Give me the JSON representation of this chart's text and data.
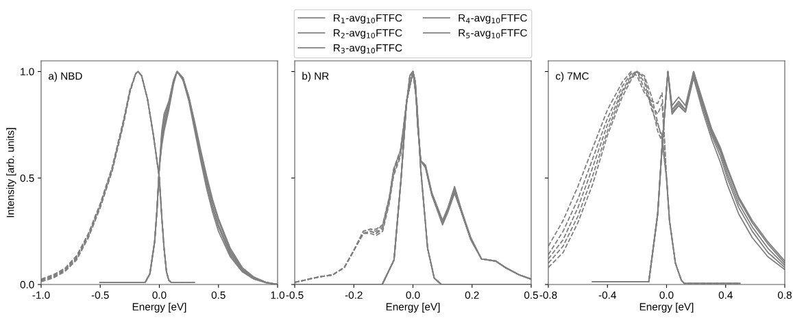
{
  "chart_data": [
    {
      "type": "line",
      "xlabel": "Energy [eV]",
      "ylabel": "Intensity [arb. units]",
      "annotations": [
        "a) NBD"
      ],
      "xlim": [
        -1.0,
        1.0
      ],
      "ylim": [
        0,
        1.05
      ],
      "xticks": [
        {
          "value": -1.0,
          "label": "-1.0"
        },
        {
          "value": -0.5,
          "label": "-0.5"
        },
        {
          "value": 0.0,
          "label": "0.0"
        },
        {
          "value": 0.5,
          "label": "0.5"
        },
        {
          "value": 1.0,
          "label": "1.0"
        }
      ],
      "yticks": [
        {
          "value": 0.0,
          "label": "0.0"
        },
        {
          "value": 0.5,
          "label": "0.5"
        },
        {
          "value": 1.0,
          "label": "1.0"
        }
      ],
      "series": [
        {
          "color": "#808080",
          "line_style": "solid",
          "x": [
            -0.5,
            -0.12,
            -0.08,
            -0.04,
            -0.02,
            0.0,
            0.02,
            0.04,
            0.08,
            0.12,
            0.15,
            0.2,
            0.25,
            0.3,
            0.35,
            0.4,
            0.45,
            0.5,
            0.6,
            0.7,
            0.8,
            0.9,
            1.0
          ],
          "values": [
            0.01,
            0.01,
            0.05,
            0.2,
            0.35,
            0.55,
            0.72,
            0.8,
            0.86,
            0.96,
            1.0,
            0.96,
            0.86,
            0.72,
            0.58,
            0.45,
            0.34,
            0.25,
            0.13,
            0.06,
            0.025,
            0.008,
            0.0
          ]
        },
        {
          "color": "#808080",
          "line_style": "solid",
          "x": [
            -0.5,
            -0.12,
            -0.08,
            -0.04,
            -0.02,
            0.0,
            0.02,
            0.04,
            0.08,
            0.12,
            0.15,
            0.2,
            0.25,
            0.3,
            0.35,
            0.4,
            0.45,
            0.5,
            0.6,
            0.7,
            0.8,
            0.9,
            1.0
          ],
          "values": [
            0.01,
            0.01,
            0.05,
            0.2,
            0.35,
            0.55,
            0.7,
            0.78,
            0.85,
            0.96,
            1.0,
            0.96,
            0.87,
            0.73,
            0.6,
            0.47,
            0.36,
            0.27,
            0.14,
            0.065,
            0.028,
            0.009,
            0.0
          ]
        },
        {
          "color": "#808080",
          "line_style": "solid",
          "x": [
            -0.5,
            -0.12,
            -0.08,
            -0.04,
            -0.02,
            0.0,
            0.02,
            0.04,
            0.08,
            0.12,
            0.15,
            0.2,
            0.25,
            0.3,
            0.35,
            0.4,
            0.45,
            0.5,
            0.6,
            0.7,
            0.8,
            0.9,
            1.0
          ],
          "values": [
            0.01,
            0.01,
            0.05,
            0.2,
            0.35,
            0.55,
            0.68,
            0.76,
            0.84,
            0.95,
            1.0,
            0.97,
            0.87,
            0.74,
            0.61,
            0.48,
            0.37,
            0.28,
            0.15,
            0.07,
            0.03,
            0.01,
            0.0
          ]
        },
        {
          "color": "#808080",
          "line_style": "solid",
          "x": [
            -0.5,
            -0.12,
            -0.08,
            -0.04,
            -0.02,
            0.0,
            0.02,
            0.04,
            0.08,
            0.12,
            0.15,
            0.2,
            0.25,
            0.3,
            0.35,
            0.4,
            0.45,
            0.5,
            0.6,
            0.7,
            0.8,
            0.9,
            1.0
          ],
          "values": [
            0.01,
            0.01,
            0.05,
            0.2,
            0.35,
            0.55,
            0.66,
            0.74,
            0.83,
            0.95,
            1.0,
            0.97,
            0.88,
            0.75,
            0.62,
            0.5,
            0.39,
            0.3,
            0.16,
            0.075,
            0.032,
            0.01,
            0.0
          ]
        },
        {
          "color": "#808080",
          "line_style": "solid",
          "x": [
            -0.5,
            -0.12,
            -0.08,
            -0.04,
            -0.02,
            0.0,
            0.02,
            0.04,
            0.08,
            0.12,
            0.15,
            0.2,
            0.25,
            0.3,
            0.35,
            0.4,
            0.45,
            0.5,
            0.6,
            0.7,
            0.8,
            0.9,
            1.0
          ],
          "values": [
            0.01,
            0.01,
            0.05,
            0.2,
            0.35,
            0.55,
            0.65,
            0.72,
            0.82,
            0.94,
            1.0,
            0.97,
            0.88,
            0.76,
            0.63,
            0.51,
            0.4,
            0.31,
            0.17,
            0.08,
            0.035,
            0.011,
            0.0
          ]
        },
        {
          "color": "#808080",
          "line_style": "dashed",
          "x": [
            -1.0,
            -0.9,
            -0.8,
            -0.7,
            -0.6,
            -0.5,
            -0.4,
            -0.3,
            -0.25,
            -0.2,
            -0.18,
            -0.15,
            -0.1,
            -0.05,
            0.0,
            0.02,
            0.04,
            0.06,
            0.08,
            0.1,
            0.3
          ],
          "values": [
            0.013,
            0.03,
            0.06,
            0.115,
            0.22,
            0.36,
            0.53,
            0.76,
            0.9,
            0.99,
            1.0,
            0.98,
            0.87,
            0.7,
            0.5,
            0.32,
            0.17,
            0.06,
            0.02,
            0.01,
            0.01
          ]
        },
        {
          "color": "#808080",
          "line_style": "dashed",
          "x": [
            -1.0,
            -0.9,
            -0.8,
            -0.7,
            -0.6,
            -0.5,
            -0.4,
            -0.3,
            -0.25,
            -0.2,
            -0.18,
            -0.15,
            -0.1,
            -0.05,
            0.0,
            0.02,
            0.04,
            0.06,
            0.08,
            0.1,
            0.3
          ],
          "values": [
            0.015,
            0.034,
            0.064,
            0.12,
            0.225,
            0.365,
            0.535,
            0.765,
            0.9,
            0.99,
            1.0,
            0.98,
            0.87,
            0.7,
            0.5,
            0.32,
            0.17,
            0.06,
            0.02,
            0.01,
            0.01
          ]
        },
        {
          "color": "#808080",
          "line_style": "dashed",
          "x": [
            -1.0,
            -0.9,
            -0.8,
            -0.7,
            -0.6,
            -0.5,
            -0.4,
            -0.3,
            -0.25,
            -0.2,
            -0.18,
            -0.15,
            -0.1,
            -0.05,
            0.0,
            0.02,
            0.04,
            0.06,
            0.08,
            0.1,
            0.3
          ],
          "values": [
            0.02,
            0.038,
            0.068,
            0.125,
            0.23,
            0.37,
            0.54,
            0.77,
            0.91,
            0.99,
            1.0,
            0.98,
            0.87,
            0.7,
            0.5,
            0.32,
            0.17,
            0.06,
            0.02,
            0.01,
            0.01
          ]
        },
        {
          "color": "#808080",
          "line_style": "dashed",
          "x": [
            -1.0,
            -0.9,
            -0.8,
            -0.7,
            -0.6,
            -0.5,
            -0.4,
            -0.3,
            -0.25,
            -0.2,
            -0.18,
            -0.15,
            -0.1,
            -0.05,
            0.0,
            0.02,
            0.04,
            0.06,
            0.08,
            0.1,
            0.3
          ],
          "values": [
            0.022,
            0.042,
            0.072,
            0.13,
            0.235,
            0.375,
            0.545,
            0.775,
            0.91,
            0.99,
            1.0,
            0.98,
            0.87,
            0.7,
            0.5,
            0.32,
            0.17,
            0.06,
            0.02,
            0.01,
            0.01
          ]
        },
        {
          "color": "#808080",
          "line_style": "dashed",
          "x": [
            -1.0,
            -0.9,
            -0.8,
            -0.7,
            -0.6,
            -0.5,
            -0.4,
            -0.3,
            -0.25,
            -0.2,
            -0.18,
            -0.15,
            -0.1,
            -0.05,
            0.0,
            0.02,
            0.04,
            0.06,
            0.08,
            0.1,
            0.3
          ],
          "values": [
            0.025,
            0.045,
            0.075,
            0.135,
            0.24,
            0.38,
            0.55,
            0.78,
            0.91,
            0.99,
            1.0,
            0.98,
            0.87,
            0.7,
            0.5,
            0.32,
            0.17,
            0.06,
            0.02,
            0.01,
            0.01
          ]
        }
      ]
    },
    {
      "type": "line",
      "xlabel": "Energy [eV]",
      "annotations": [
        "b) NR"
      ],
      "xlim": [
        -0.5,
        0.5
      ],
      "ylim": [
        0,
        1.05
      ],
      "tick_labels": "x",
      "legend": "top",
      "xticks": [
        {
          "value": -0.5,
          "label": "-0.5"
        },
        {
          "value": -0.25,
          "label": "-0.2"
        },
        {
          "value": 0.0,
          "label": "0.0"
        },
        {
          "value": 0.25,
          "label": "0.2"
        },
        {
          "value": 0.5,
          "label": "0.5"
        }
      ],
      "yticks": [
        {
          "value": 0.0,
          "label": null
        },
        {
          "value": 0.5,
          "label": null
        },
        {
          "value": 1.0,
          "label": null
        }
      ],
      "series": [
        {
          "name": "R$_{1}$-avg$_{10}$FTFC",
          "color": "#808080",
          "line_style": "solid",
          "x": [
            -0.5,
            -0.13,
            -0.08,
            -0.05,
            -0.027,
            0.0,
            0.01,
            0.02,
            0.033,
            0.053,
            0.08,
            0.125,
            0.148,
            0.176,
            0.205,
            0.245,
            0.29,
            0.35,
            0.39,
            0.45,
            0.5
          ],
          "values": [
            0,
            0,
            0.115,
            0.5,
            0.86,
            1.0,
            0.95,
            0.75,
            0.58,
            0.55,
            0.42,
            0.29,
            0.35,
            0.44,
            0.34,
            0.21,
            0.12,
            0.11,
            0.08,
            0.045,
            0.025
          ]
        },
        {
          "name": "R$_{2}$-avg$_{10}$FTFC",
          "color": "#808080",
          "line_style": "solid",
          "x": [
            -0.5,
            -0.13,
            -0.08,
            -0.05,
            -0.027,
            0.0,
            0.01,
            0.02,
            0.033,
            0.053,
            0.08,
            0.125,
            0.148,
            0.176,
            0.205,
            0.245,
            0.29,
            0.35,
            0.39,
            0.45,
            0.5
          ],
          "values": [
            0,
            0,
            0.115,
            0.5,
            0.86,
            1.0,
            0.95,
            0.75,
            0.58,
            0.55,
            0.42,
            0.28,
            0.34,
            0.43,
            0.34,
            0.21,
            0.12,
            0.11,
            0.08,
            0.045,
            0.025
          ]
        },
        {
          "name": "R$_{3}$-avg$_{10}$FTFC",
          "color": "#808080",
          "line_style": "solid",
          "x": [
            -0.5,
            -0.13,
            -0.08,
            -0.05,
            -0.027,
            0.0,
            0.01,
            0.02,
            0.033,
            0.053,
            0.08,
            0.125,
            0.148,
            0.176,
            0.205,
            0.245,
            0.29,
            0.35,
            0.39,
            0.45,
            0.5
          ],
          "values": [
            0,
            0,
            0.115,
            0.5,
            0.86,
            1.0,
            0.95,
            0.75,
            0.58,
            0.56,
            0.43,
            0.3,
            0.36,
            0.45,
            0.35,
            0.21,
            0.12,
            0.11,
            0.08,
            0.045,
            0.025
          ]
        },
        {
          "name": "R$_{4}$-avg$_{10}$FTFC",
          "color": "#808080",
          "line_style": "solid",
          "x": [
            -0.5,
            -0.13,
            -0.08,
            -0.05,
            -0.027,
            0.0,
            0.01,
            0.02,
            0.033,
            0.053,
            0.08,
            0.125,
            0.148,
            0.176,
            0.205,
            0.245,
            0.29,
            0.35,
            0.39,
            0.45,
            0.5
          ],
          "values": [
            0,
            0,
            0.115,
            0.5,
            0.86,
            1.0,
            0.95,
            0.75,
            0.58,
            0.55,
            0.42,
            0.29,
            0.35,
            0.43,
            0.34,
            0.21,
            0.12,
            0.11,
            0.08,
            0.045,
            0.025
          ]
        },
        {
          "name": "R$_{5}$-avg$_{10}$FTFC",
          "color": "#808080",
          "line_style": "solid",
          "x": [
            -0.5,
            -0.13,
            -0.08,
            -0.05,
            -0.027,
            0.0,
            0.01,
            0.02,
            0.033,
            0.053,
            0.08,
            0.125,
            0.148,
            0.176,
            0.205,
            0.245,
            0.29,
            0.35,
            0.39,
            0.45,
            0.5
          ],
          "values": [
            0,
            0,
            0.115,
            0.5,
            0.86,
            1.0,
            0.95,
            0.75,
            0.58,
            0.56,
            0.43,
            0.3,
            0.36,
            0.46,
            0.35,
            0.22,
            0.12,
            0.11,
            0.08,
            0.045,
            0.025
          ]
        },
        {
          "color": "#808080",
          "line_style": "dashed",
          "x": [
            -0.5,
            -0.4,
            -0.34,
            -0.29,
            -0.25,
            -0.21,
            -0.18,
            -0.156,
            -0.128,
            -0.1,
            -0.082,
            -0.053,
            -0.039,
            -0.013,
            0.0,
            0.016,
            0.033,
            0.062,
            0.09,
            0.12,
            0.5
          ],
          "values": [
            0.01,
            0.035,
            0.045,
            0.08,
            0.16,
            0.24,
            0.25,
            0.24,
            0.27,
            0.4,
            0.53,
            0.62,
            0.74,
            0.98,
            1.0,
            0.86,
            0.54,
            0.17,
            0.03,
            0.0,
            0.0
          ]
        },
        {
          "color": "#808080",
          "line_style": "dashed",
          "x": [
            -0.5,
            -0.4,
            -0.34,
            -0.29,
            -0.25,
            -0.21,
            -0.18,
            -0.156,
            -0.128,
            -0.1,
            -0.082,
            -0.053,
            -0.039,
            -0.013,
            0.0,
            0.016,
            0.033,
            0.062,
            0.09,
            0.12,
            0.5
          ],
          "values": [
            0.01,
            0.035,
            0.045,
            0.08,
            0.16,
            0.25,
            0.26,
            0.25,
            0.28,
            0.41,
            0.54,
            0.63,
            0.75,
            0.98,
            1.0,
            0.86,
            0.54,
            0.17,
            0.03,
            0.0,
            0.0
          ]
        },
        {
          "color": "#808080",
          "line_style": "dashed",
          "x": [
            -0.5,
            -0.4,
            -0.34,
            -0.29,
            -0.25,
            -0.21,
            -0.18,
            -0.156,
            -0.128,
            -0.1,
            -0.082,
            -0.053,
            -0.039,
            -0.013,
            0.0,
            0.016,
            0.033,
            0.062,
            0.09,
            0.12,
            0.5
          ],
          "values": [
            0.01,
            0.035,
            0.045,
            0.08,
            0.16,
            0.24,
            0.24,
            0.23,
            0.25,
            0.38,
            0.51,
            0.6,
            0.72,
            0.98,
            1.0,
            0.86,
            0.54,
            0.17,
            0.03,
            0.0,
            0.0
          ]
        },
        {
          "color": "#808080",
          "line_style": "dashed",
          "x": [
            -0.5,
            -0.4,
            -0.34,
            -0.29,
            -0.25,
            -0.21,
            -0.18,
            -0.156,
            -0.128,
            -0.1,
            -0.082,
            -0.053,
            -0.039,
            -0.013,
            0.0,
            0.016,
            0.033,
            0.062,
            0.09,
            0.12,
            0.5
          ],
          "values": [
            0.01,
            0.035,
            0.045,
            0.08,
            0.16,
            0.25,
            0.26,
            0.26,
            0.28,
            0.41,
            0.54,
            0.63,
            0.75,
            0.98,
            1.0,
            0.86,
            0.54,
            0.17,
            0.03,
            0.0,
            0.0
          ]
        },
        {
          "color": "#808080",
          "line_style": "dashed",
          "x": [
            -0.5,
            -0.4,
            -0.34,
            -0.29,
            -0.25,
            -0.21,
            -0.18,
            -0.156,
            -0.128,
            -0.1,
            -0.082,
            -0.053,
            -0.039,
            -0.013,
            0.0,
            0.016,
            0.033,
            0.062,
            0.09,
            0.12,
            0.5
          ],
          "values": [
            0.01,
            0.035,
            0.045,
            0.08,
            0.16,
            0.24,
            0.25,
            0.24,
            0.26,
            0.39,
            0.52,
            0.61,
            0.73,
            0.98,
            1.0,
            0.86,
            0.54,
            0.17,
            0.03,
            0.0,
            0.0
          ]
        }
      ]
    },
    {
      "type": "line",
      "xlabel": "Energy [eV]",
      "annotations": [
        "c) 7MC"
      ],
      "xlim": [
        -0.8,
        0.8
      ],
      "ylim": [
        0,
        1.05
      ],
      "tick_labels": "x",
      "xticks": [
        {
          "value": -0.8,
          "label": "-0.8"
        },
        {
          "value": -0.4,
          "label": "-0.4"
        },
        {
          "value": 0.0,
          "label": "0.0"
        },
        {
          "value": 0.4,
          "label": "0.4"
        },
        {
          "value": 0.8,
          "label": "0.8"
        }
      ],
      "yticks": [
        {
          "value": 0.0,
          "label": null
        },
        {
          "value": 0.5,
          "label": null
        },
        {
          "value": 1.0,
          "label": null
        }
      ],
      "series": [
        {
          "color": "#808080",
          "line_style": "solid",
          "x": [
            -0.5,
            -0.12,
            -0.06,
            -0.03,
            0.009,
            0.037,
            0.082,
            0.128,
            0.183,
            0.242,
            0.306,
            0.366,
            0.411,
            0.489,
            0.58,
            0.686,
            0.8
          ],
          "values": [
            0.013,
            0.013,
            0.33,
            0.65,
            1.0,
            0.82,
            0.86,
            0.82,
            1.0,
            0.87,
            0.73,
            0.64,
            0.55,
            0.41,
            0.3,
            0.2,
            0.11
          ]
        },
        {
          "color": "#808080",
          "line_style": "solid",
          "x": [
            -0.5,
            -0.12,
            -0.06,
            -0.03,
            0.009,
            0.037,
            0.082,
            0.128,
            0.183,
            0.242,
            0.306,
            0.366,
            0.411,
            0.489,
            0.58,
            0.686,
            0.8
          ],
          "values": [
            0.013,
            0.013,
            0.33,
            0.65,
            1.0,
            0.84,
            0.88,
            0.84,
            1.0,
            0.86,
            0.72,
            0.63,
            0.54,
            0.4,
            0.29,
            0.19,
            0.1
          ]
        },
        {
          "color": "#808080",
          "line_style": "solid",
          "x": [
            -0.5,
            -0.12,
            -0.06,
            -0.03,
            0.009,
            0.037,
            0.082,
            0.128,
            0.183,
            0.242,
            0.306,
            0.366,
            0.411,
            0.489,
            0.58,
            0.686,
            0.8
          ],
          "values": [
            0.013,
            0.013,
            0.33,
            0.65,
            1.0,
            0.82,
            0.85,
            0.82,
            0.99,
            0.85,
            0.71,
            0.62,
            0.52,
            0.38,
            0.27,
            0.17,
            0.09
          ]
        },
        {
          "color": "#808080",
          "line_style": "solid",
          "x": [
            -0.5,
            -0.12,
            -0.06,
            -0.03,
            0.009,
            0.037,
            0.082,
            0.128,
            0.183,
            0.242,
            0.306,
            0.366,
            0.411,
            0.489,
            0.58,
            0.686,
            0.8
          ],
          "values": [
            0.013,
            0.013,
            0.33,
            0.65,
            1.0,
            0.81,
            0.84,
            0.81,
            0.98,
            0.84,
            0.7,
            0.6,
            0.5,
            0.36,
            0.25,
            0.15,
            0.08
          ]
        },
        {
          "color": "#808080",
          "line_style": "solid",
          "x": [
            -0.5,
            -0.12,
            -0.06,
            -0.03,
            0.009,
            0.037,
            0.082,
            0.128,
            0.183,
            0.242,
            0.306,
            0.366,
            0.411,
            0.489,
            0.58,
            0.686,
            0.8
          ],
          "values": [
            0.013,
            0.013,
            0.33,
            0.65,
            1.0,
            0.8,
            0.84,
            0.81,
            0.97,
            0.82,
            0.68,
            0.57,
            0.47,
            0.33,
            0.22,
            0.13,
            0.07
          ]
        },
        {
          "color": "#808080",
          "line_style": "dashed",
          "x": [
            -0.8,
            -0.7,
            -0.6,
            -0.5,
            -0.4,
            -0.3,
            -0.24,
            -0.2,
            -0.15,
            -0.1,
            -0.06,
            -0.03,
            0.0,
            0.02,
            0.06,
            0.1,
            0.12,
            0.5
          ],
          "values": [
            0.18,
            0.3,
            0.46,
            0.64,
            0.82,
            0.95,
            1.0,
            0.98,
            0.9,
            0.86,
            0.85,
            0.9,
            0.5,
            0.3,
            0.1,
            0.02,
            0.005,
            0.005
          ]
        },
        {
          "color": "#808080",
          "line_style": "dashed",
          "x": [
            -0.8,
            -0.7,
            -0.6,
            -0.5,
            -0.4,
            -0.3,
            -0.24,
            -0.2,
            -0.15,
            -0.1,
            -0.06,
            -0.03,
            0.0,
            0.02,
            0.06,
            0.1,
            0.12,
            0.5
          ],
          "values": [
            0.14,
            0.25,
            0.4,
            0.59,
            0.78,
            0.93,
            0.99,
            1.0,
            0.92,
            0.84,
            0.8,
            0.85,
            0.5,
            0.3,
            0.1,
            0.02,
            0.005,
            0.005
          ]
        },
        {
          "color": "#808080",
          "line_style": "dashed",
          "x": [
            -0.8,
            -0.7,
            -0.6,
            -0.5,
            -0.4,
            -0.3,
            -0.24,
            -0.2,
            -0.15,
            -0.1,
            -0.06,
            -0.03,
            0.0,
            0.02,
            0.06,
            0.1,
            0.12,
            0.5
          ],
          "values": [
            0.12,
            0.21,
            0.36,
            0.55,
            0.75,
            0.91,
            0.98,
            1.0,
            0.95,
            0.82,
            0.75,
            0.7,
            0.5,
            0.3,
            0.1,
            0.02,
            0.005,
            0.005
          ]
        },
        {
          "color": "#808080",
          "line_style": "dashed",
          "x": [
            -0.8,
            -0.7,
            -0.6,
            -0.5,
            -0.4,
            -0.3,
            -0.24,
            -0.2,
            -0.15,
            -0.1,
            -0.06,
            -0.03,
            0.0,
            0.02,
            0.06,
            0.1,
            0.12,
            0.5
          ],
          "values": [
            0.1,
            0.18,
            0.32,
            0.51,
            0.72,
            0.9,
            0.97,
            1.0,
            0.97,
            0.84,
            0.72,
            0.67,
            0.5,
            0.3,
            0.1,
            0.02,
            0.005,
            0.005
          ]
        },
        {
          "color": "#808080",
          "line_style": "dashed",
          "x": [
            -0.8,
            -0.7,
            -0.6,
            -0.5,
            -0.4,
            -0.3,
            -0.24,
            -0.2,
            -0.15,
            -0.1,
            -0.06,
            -0.03,
            0.0,
            0.02,
            0.06,
            0.1,
            0.12,
            0.5
          ],
          "values": [
            0.08,
            0.15,
            0.29,
            0.47,
            0.7,
            0.88,
            0.96,
            1.0,
            0.98,
            0.88,
            0.76,
            0.68,
            0.5,
            0.3,
            0.1,
            0.02,
            0.005,
            0.005
          ]
        }
      ]
    }
  ]
}
